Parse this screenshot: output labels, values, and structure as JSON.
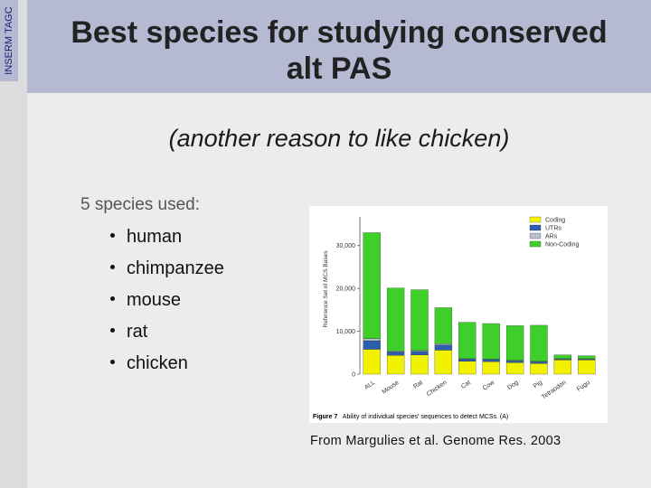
{
  "sidebar_tag": "INSERM TAGC",
  "slide": {
    "title_line1": "Best species for studying conserved",
    "title_line2": "alt PAS",
    "subtitle": "(another reason to like chicken)",
    "intro": "5 species used:",
    "bullets": [
      "human",
      "chimpanzee",
      "mouse",
      "rat",
      "chicken"
    ],
    "caption": "From Margulies et al. Genome Res. 2003"
  },
  "colors": {
    "coding": "#f2f200",
    "utrs": "#2a5fb0",
    "ars": "#b8bfd0",
    "noncoding": "#3ecf2a"
  },
  "chart_data": {
    "type": "bar",
    "stacked": true,
    "categories": [
      "ALL",
      "Mouse",
      "Rat",
      "Chicken",
      "Cat",
      "Cow",
      "Dog",
      "Pig",
      "Tetraodon",
      "Fugu"
    ],
    "ylabel": "Reference Set of MCS Bases",
    "yticks": [
      0,
      10000,
      20000,
      30000
    ],
    "ytick_labels": [
      "0",
      "10,000",
      "20,000",
      "30,000"
    ],
    "ylim": [
      0,
      35000
    ],
    "legend_position": "top-right",
    "series": [
      {
        "name": "Coding",
        "color": "#f2f200",
        "values": [
          5800,
          4400,
          4500,
          5600,
          3000,
          2900,
          2700,
          2500,
          3300,
          3300
        ]
      },
      {
        "name": "UTRs",
        "color": "#2a5fb0",
        "values": [
          2000,
          800,
          800,
          1200,
          500,
          500,
          400,
          400,
          200,
          200
        ]
      },
      {
        "name": "ARs",
        "color": "#b8bfd0",
        "values": [
          500,
          200,
          200,
          300,
          100,
          100,
          100,
          100,
          100,
          100
        ]
      },
      {
        "name": "Non-Coding",
        "color": "#3ecf2a",
        "values": [
          24700,
          14700,
          14200,
          8400,
          8500,
          8300,
          8100,
          8400,
          900,
          700
        ]
      }
    ],
    "figure_label": "Figure 7",
    "figure_text": "Ability of individual species' sequences to detect MCSs. (A)"
  }
}
